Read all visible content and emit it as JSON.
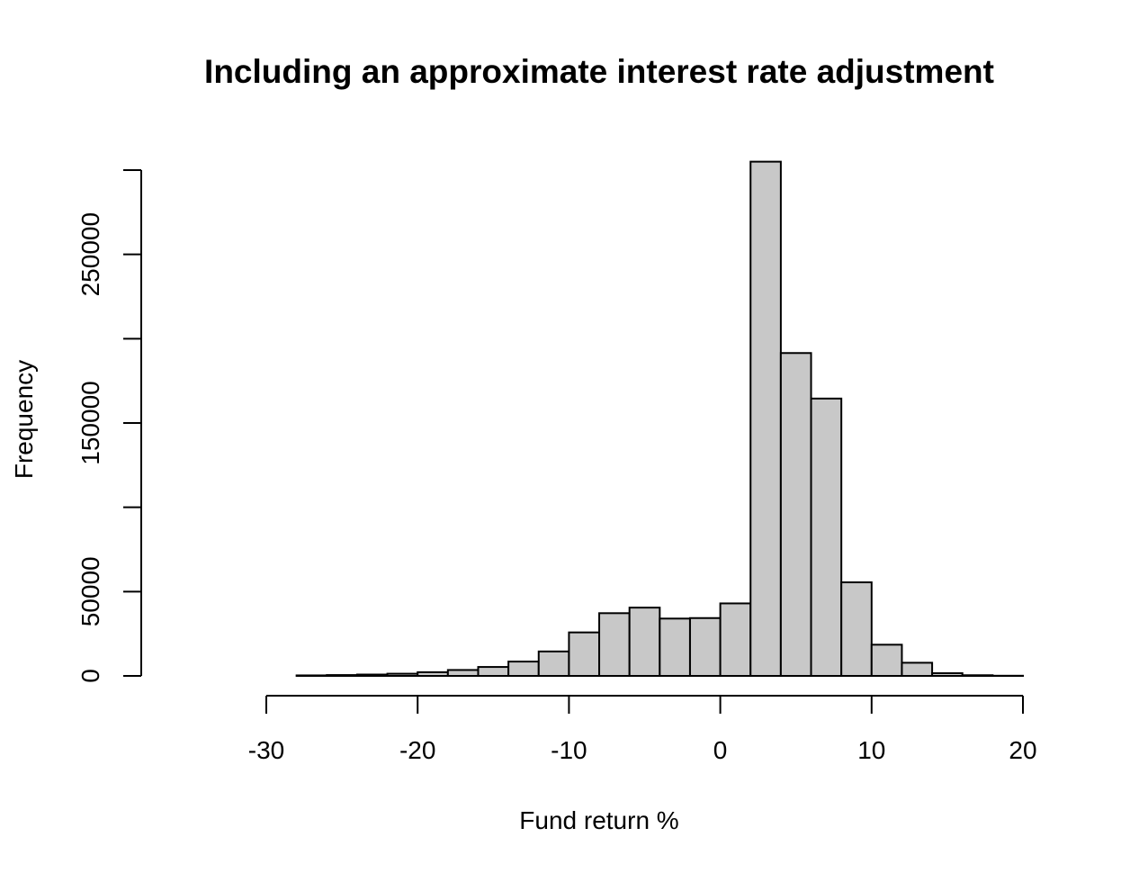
{
  "chart_data": {
    "type": "bar",
    "title": "Including an approximate interest rate adjustment",
    "xlabel": "Fund return %",
    "ylabel": "Frequency",
    "bin_width": 2,
    "bins": [
      {
        "start": -36,
        "end": -34,
        "count": 0
      },
      {
        "start": -34,
        "end": -32,
        "count": 0
      },
      {
        "start": -32,
        "end": -30,
        "count": 0
      },
      {
        "start": -30,
        "end": -28,
        "count": 0
      },
      {
        "start": -28,
        "end": -26,
        "count": 300
      },
      {
        "start": -26,
        "end": -24,
        "count": 500
      },
      {
        "start": -24,
        "end": -22,
        "count": 800
      },
      {
        "start": -22,
        "end": -20,
        "count": 1300
      },
      {
        "start": -20,
        "end": -18,
        "count": 2200
      },
      {
        "start": -18,
        "end": -16,
        "count": 3500
      },
      {
        "start": -16,
        "end": -14,
        "count": 5300
      },
      {
        "start": -14,
        "end": -12,
        "count": 8500
      },
      {
        "start": -12,
        "end": -10,
        "count": 14500
      },
      {
        "start": -10,
        "end": -8,
        "count": 25800
      },
      {
        "start": -8,
        "end": -6,
        "count": 37200
      },
      {
        "start": -6,
        "end": -4,
        "count": 40500
      },
      {
        "start": -4,
        "end": -2,
        "count": 34000
      },
      {
        "start": -2,
        "end": 0,
        "count": 34300
      },
      {
        "start": 0,
        "end": 2,
        "count": 43000
      },
      {
        "start": 2,
        "end": 4,
        "count": 305000
      },
      {
        "start": 4,
        "end": 6,
        "count": 191500
      },
      {
        "start": 6,
        "end": 8,
        "count": 164500
      },
      {
        "start": 8,
        "end": 10,
        "count": 55500
      },
      {
        "start": 10,
        "end": 12,
        "count": 18500
      },
      {
        "start": 12,
        "end": 14,
        "count": 7800
      },
      {
        "start": 14,
        "end": 16,
        "count": 1600
      },
      {
        "start": 16,
        "end": 18,
        "count": 400
      },
      {
        "start": 18,
        "end": 20,
        "count": 100
      }
    ],
    "xlim": [
      -36,
      20
    ],
    "ylim": [
      0,
      300000
    ],
    "x_ticks": [
      -30,
      -20,
      -10,
      0,
      10,
      20
    ],
    "x_tick_labels": [
      "-30",
      "-20",
      "-10",
      "0",
      "10",
      "20"
    ],
    "y_ticks": [
      0,
      50000,
      100000,
      150000,
      200000,
      250000,
      300000
    ],
    "y_tick_labels": [
      "0",
      "50000",
      "",
      "150000",
      "",
      "250000",
      ""
    ],
    "grid": false,
    "legend": "none"
  },
  "colors": {
    "bar_fill": "#c8c8c8",
    "bar_stroke": "#000000",
    "background": "#ffffff"
  }
}
